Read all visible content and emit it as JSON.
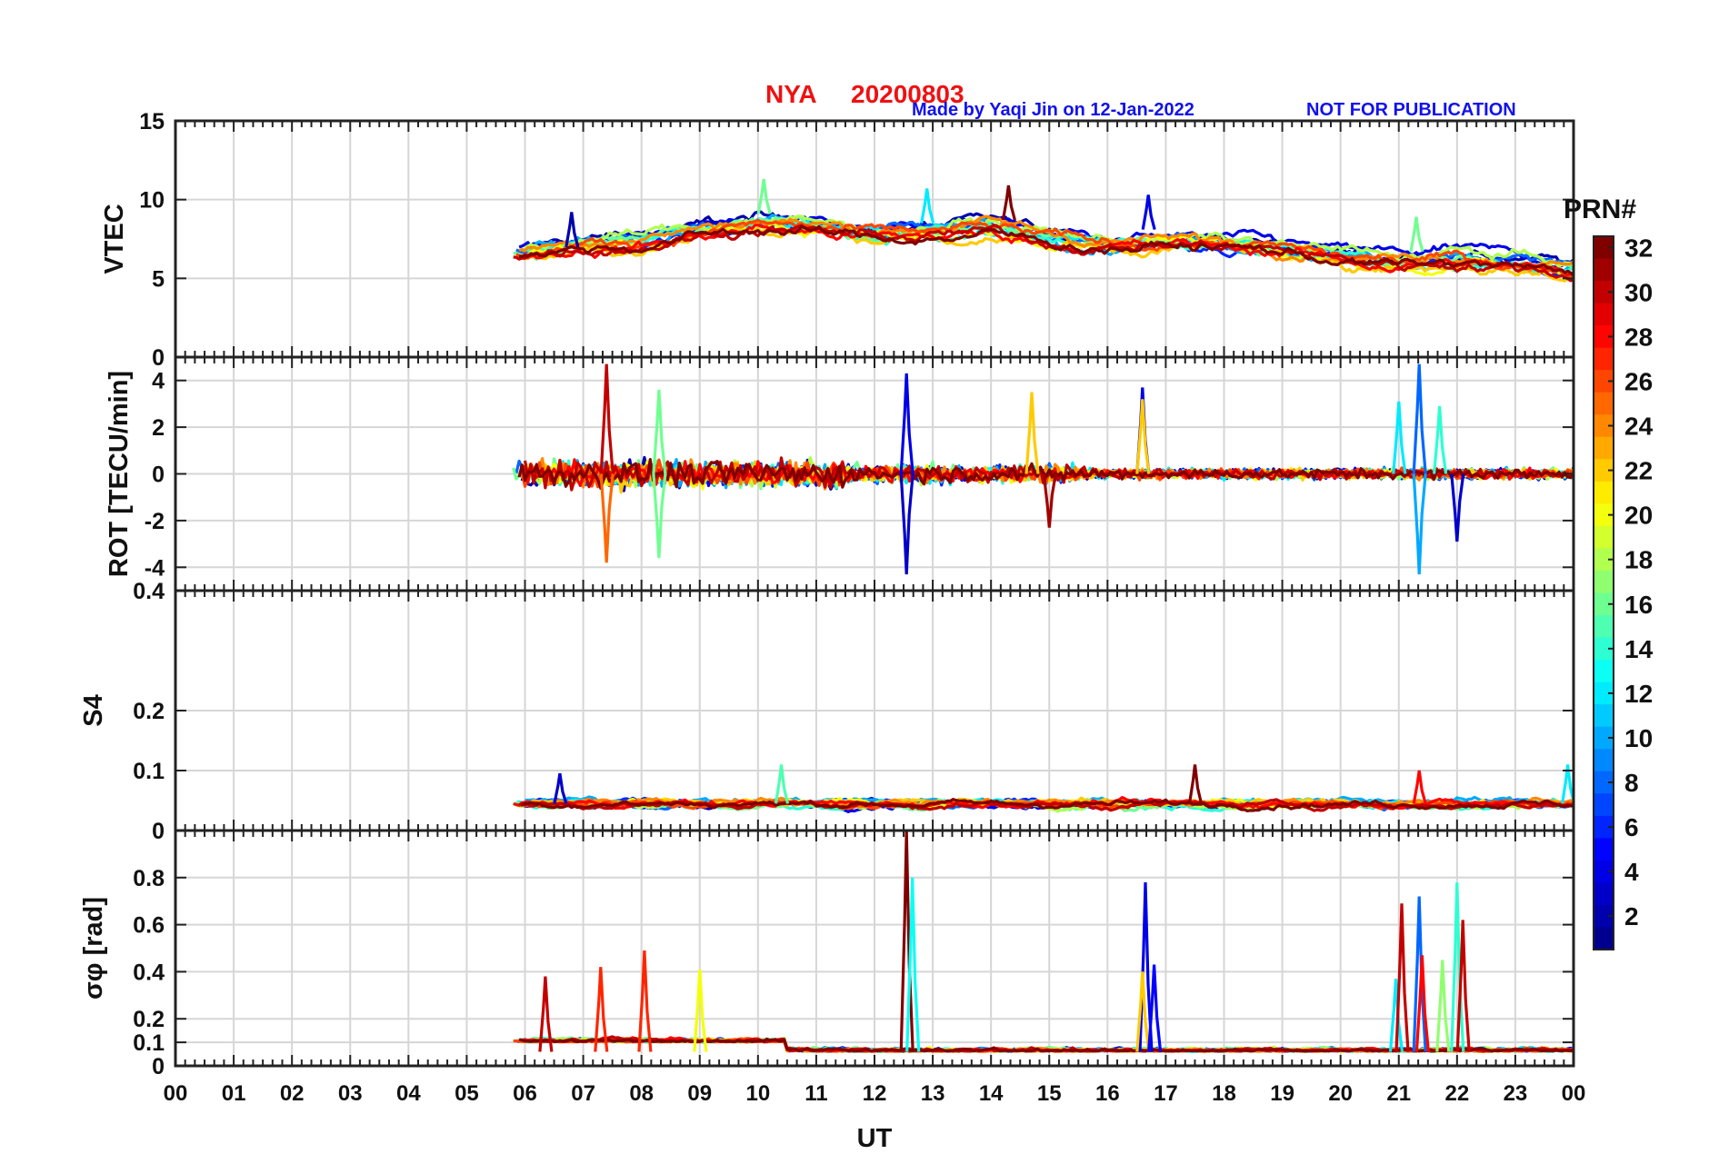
{
  "header": {
    "station": "NYA",
    "date": "20200803",
    "credit": "Made by Yaqi Jin on 12-Jan-2022",
    "notice": "NOT FOR PUBLICATION"
  },
  "colors": {
    "title": "#ee1111",
    "credit": "#1111ee",
    "grid": "#d6d6d6",
    "axis": "#222222",
    "colormap": [
      "#00008f",
      "#0000ff",
      "#0080ff",
      "#00ffff",
      "#80ff80",
      "#ffff00",
      "#ff8000",
      "#ff0000",
      "#800000"
    ]
  },
  "chart_data": {
    "type": "line",
    "title": "NYA   20200803",
    "xlabel": "UT",
    "x_ticks": [
      "00",
      "01",
      "02",
      "03",
      "04",
      "05",
      "06",
      "07",
      "08",
      "09",
      "10",
      "11",
      "12",
      "13",
      "14",
      "15",
      "16",
      "17",
      "18",
      "19",
      "20",
      "21",
      "22",
      "23",
      "00"
    ],
    "x_range_hours": [
      0,
      24
    ],
    "data_coverage_hours": [
      5.75,
      24
    ],
    "colorbar": {
      "label": "PRN#",
      "range": [
        1,
        32
      ],
      "ticks": [
        "2",
        "4",
        "6",
        "8",
        "10",
        "12",
        "14",
        "16",
        "18",
        "20",
        "22",
        "24",
        "26",
        "28",
        "30",
        "32"
      ]
    },
    "panels": [
      {
        "id": "vtec",
        "ylabel": "VTEC",
        "ylim": [
          0,
          15
        ],
        "yticks": [
          0,
          5,
          10,
          15
        ],
        "ytick_labels": [
          "0",
          "5",
          "10",
          "15"
        ],
        "note": "Per-PRN traces, typically 6-9 TECU from 06-15 UT, declining to ~4-7 TECU by 23 UT",
        "envelope": {
          "hours": [
            5.75,
            7,
            8,
            9,
            10,
            11,
            12,
            13,
            14,
            15,
            16,
            17,
            18,
            19,
            20,
            21,
            22,
            23,
            24
          ],
          "center": [
            6.6,
            7.2,
            7.4,
            8.0,
            8.5,
            8.2,
            7.8,
            8.0,
            8.2,
            7.6,
            7.2,
            7.3,
            7.2,
            6.9,
            6.4,
            6.1,
            6.3,
            6.0,
            5.5
          ],
          "spread": [
            1.2,
            1.4,
            1.5,
            1.4,
            1.4,
            1.3,
            1.3,
            1.6,
            1.8,
            1.3,
            1.0,
            1.0,
            0.9,
            1.0,
            1.1,
            1.4,
            1.6,
            1.5,
            1.6
          ]
        },
        "spikes": [
          {
            "hour": 6.8,
            "value": 9.2,
            "prn": 2
          },
          {
            "hour": 10.1,
            "value": 11.3,
            "prn": 16
          },
          {
            "hour": 12.9,
            "value": 10.7,
            "prn": 12
          },
          {
            "hour": 14.3,
            "value": 10.9,
            "prn": 32
          },
          {
            "hour": 16.7,
            "value": 10.3,
            "prn": 4
          },
          {
            "hour": 21.3,
            "value": 8.9,
            "prn": 16
          }
        ]
      },
      {
        "id": "rot",
        "ylabel": "ROT [TECU/min]",
        "ylim": [
          -5,
          5
        ],
        "yticks": [
          -4,
          -2,
          0,
          2,
          4
        ],
        "ytick_labels": [
          "-4",
          "-2",
          "0",
          "2",
          "4"
        ],
        "note": "Fluctuations around 0, largest bursts near 07, 12.5, 16.6, 21.3 UT",
        "spikes": [
          {
            "hour": 7.4,
            "value": 4.7,
            "prn": 30
          },
          {
            "hour": 7.4,
            "value": -3.8,
            "prn": 25
          },
          {
            "hour": 8.3,
            "value": 3.6,
            "prn": 16
          },
          {
            "hour": 8.3,
            "value": -3.6,
            "prn": 16
          },
          {
            "hour": 12.55,
            "value": 4.3,
            "prn": 4
          },
          {
            "hour": 12.55,
            "value": -4.3,
            "prn": 3
          },
          {
            "hour": 14.7,
            "value": 3.5,
            "prn": 22
          },
          {
            "hour": 15.0,
            "value": -2.3,
            "prn": 31
          },
          {
            "hour": 16.6,
            "value": 3.7,
            "prn": 4
          },
          {
            "hour": 16.6,
            "value": 3.2,
            "prn": 22
          },
          {
            "hour": 21.0,
            "value": 3.1,
            "prn": 12
          },
          {
            "hour": 21.35,
            "value": 4.7,
            "prn": 8
          },
          {
            "hour": 21.35,
            "value": -4.3,
            "prn": 10
          },
          {
            "hour": 21.7,
            "value": 2.9,
            "prn": 14
          },
          {
            "hour": 22.0,
            "value": -2.9,
            "prn": 3
          }
        ]
      },
      {
        "id": "s4",
        "ylabel": "S4",
        "ylim": [
          0,
          0.4
        ],
        "yticks": [
          0,
          0.1,
          0.2,
          0.4
        ],
        "ytick_labels": [
          "0",
          "0.1",
          "0.2",
          "0.4"
        ],
        "note": "Mostly 0.03-0.07, occasional peaks ~0.1",
        "baseline": 0.045,
        "spikes": [
          {
            "hour": 6.6,
            "value": 0.095,
            "prn": 3
          },
          {
            "hour": 10.4,
            "value": 0.11,
            "prn": 15
          },
          {
            "hour": 17.5,
            "value": 0.11,
            "prn": 32
          },
          {
            "hour": 21.35,
            "value": 0.1,
            "prn": 28
          },
          {
            "hour": 23.9,
            "value": 0.11,
            "prn": 12
          }
        ]
      },
      {
        "id": "sigphi",
        "ylabel": "σφ [rad]",
        "ylim": [
          0,
          1.0
        ],
        "yticks": [
          0,
          0.1,
          0.2,
          0.4,
          0.6,
          0.8
        ],
        "ytick_labels": [
          "0",
          "0.1",
          "0.2",
          "0.4",
          "0.6",
          "0.8"
        ],
        "note": "Baseline ~0.05-0.1 rad with spikes",
        "baseline": 0.06,
        "spikes": [
          {
            "hour": 6.35,
            "value": 0.38,
            "prn": 30
          },
          {
            "hour": 7.3,
            "value": 0.42,
            "prn": 27
          },
          {
            "hour": 8.05,
            "value": 0.49,
            "prn": 27
          },
          {
            "hour": 9.0,
            "value": 0.41,
            "prn": 20
          },
          {
            "hour": 12.55,
            "value": 1.0,
            "prn": 32
          },
          {
            "hour": 12.65,
            "value": 0.8,
            "prn": 13
          },
          {
            "hour": 16.65,
            "value": 0.78,
            "prn": 4
          },
          {
            "hour": 16.6,
            "value": 0.4,
            "prn": 22
          },
          {
            "hour": 16.8,
            "value": 0.43,
            "prn": 5
          },
          {
            "hour": 20.95,
            "value": 0.37,
            "prn": 12
          },
          {
            "hour": 21.05,
            "value": 0.69,
            "prn": 30
          },
          {
            "hour": 21.35,
            "value": 0.72,
            "prn": 8
          },
          {
            "hour": 21.4,
            "value": 0.47,
            "prn": 28
          },
          {
            "hour": 21.75,
            "value": 0.45,
            "prn": 17
          },
          {
            "hour": 22.0,
            "value": 0.78,
            "prn": 14
          },
          {
            "hour": 22.1,
            "value": 0.62,
            "prn": 30
          }
        ]
      }
    ]
  }
}
